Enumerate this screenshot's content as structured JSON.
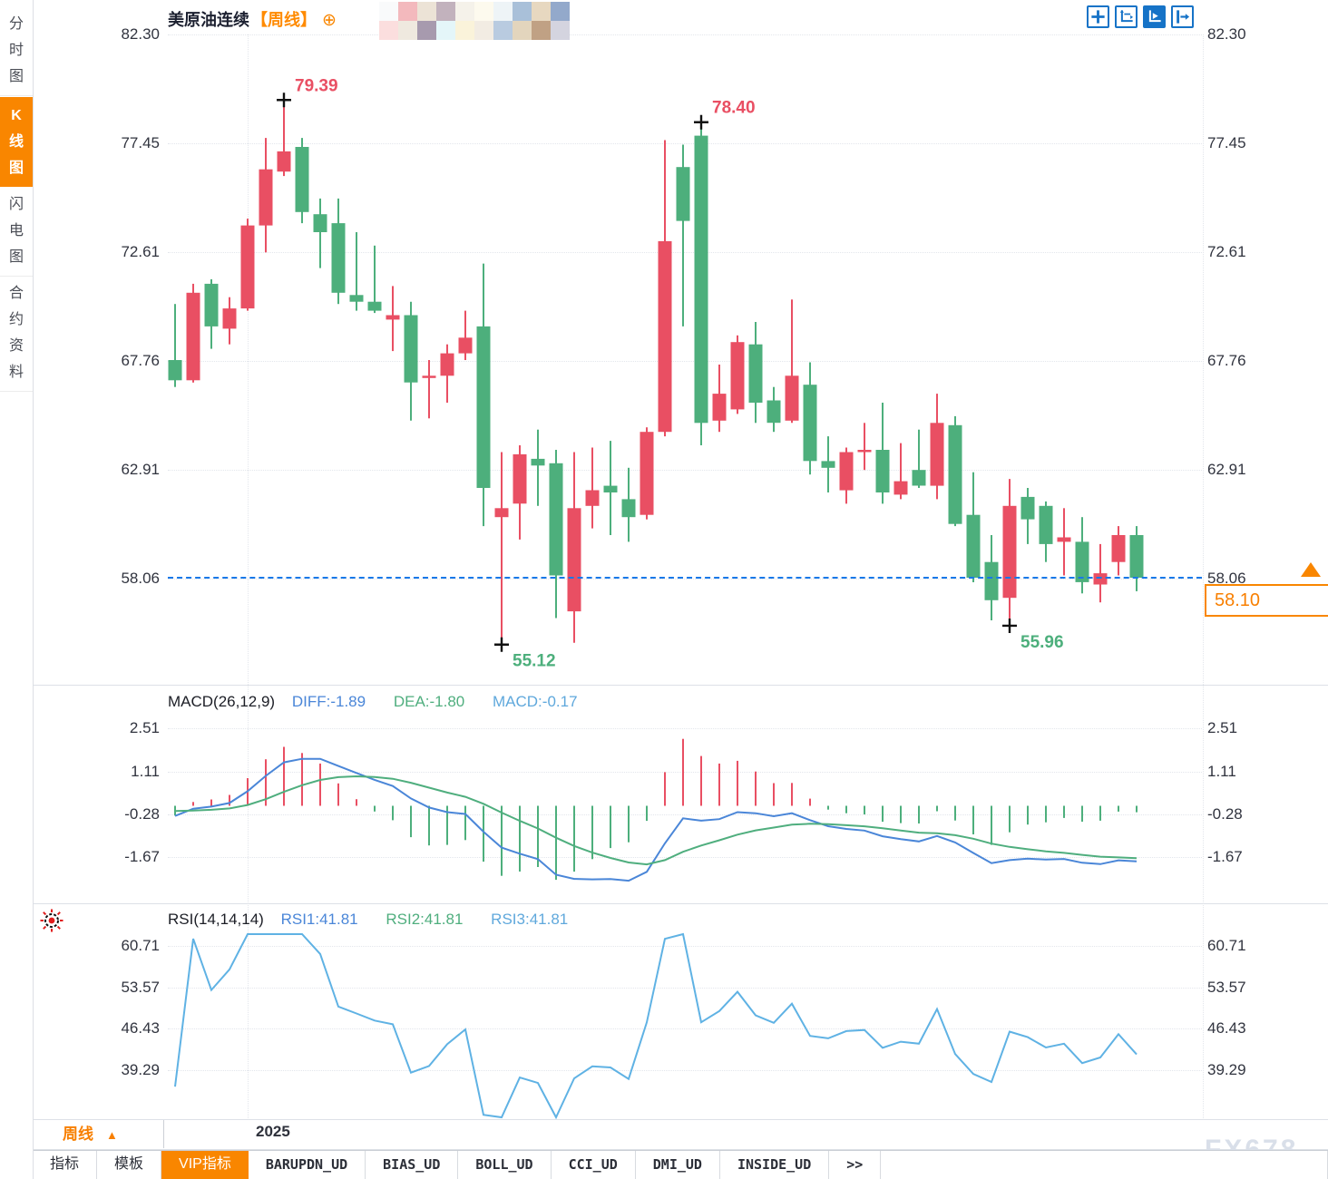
{
  "window_title": "美原油连续 周线 K线图",
  "sidebar": {
    "items": [
      {
        "label": "分时图",
        "active": false
      },
      {
        "label": "K线图",
        "active": true
      },
      {
        "label": "闪电图",
        "active": false
      },
      {
        "label": "合约资料",
        "active": false
      }
    ]
  },
  "header": {
    "title": "美原油连续",
    "timeframe_tag": "【周线】",
    "plus_icon": "⊕"
  },
  "toolbar_icons": [
    {
      "name": "crosshair-move-icon",
      "active": false
    },
    {
      "name": "axis-scale-icon",
      "active": false
    },
    {
      "name": "axis-play-icon",
      "active": true
    },
    {
      "name": "collapse-right-icon",
      "active": false
    }
  ],
  "current_price": {
    "value": "58.10",
    "line_price": 58.06
  },
  "chart_data": {
    "type": "candlestick",
    "title": "美原油连续【周线】 WTI Crude Oil Continuous, Weekly",
    "convention": "red = up candle, green = down candle (Chinese convention)",
    "price_axis_labels": [
      "82.30",
      "77.45",
      "72.61",
      "67.76",
      "62.91",
      "58.06"
    ],
    "x_year_label": "2025",
    "year_gridline_candle_index": 4,
    "candles_ohlc": [
      [
        67.8,
        70.3,
        66.6,
        66.9
      ],
      [
        66.9,
        71.2,
        66.8,
        70.8
      ],
      [
        71.2,
        71.4,
        68.3,
        69.3
      ],
      [
        69.2,
        70.6,
        68.5,
        70.1
      ],
      [
        70.1,
        74.1,
        70.0,
        73.8
      ],
      [
        73.8,
        77.7,
        72.6,
        76.3
      ],
      [
        76.2,
        79.39,
        76.0,
        77.1
      ],
      [
        77.3,
        77.7,
        73.9,
        74.4
      ],
      [
        74.3,
        75.0,
        71.9,
        73.5
      ],
      [
        73.9,
        75.0,
        70.3,
        70.8
      ],
      [
        70.7,
        73.5,
        70.0,
        70.4
      ],
      [
        70.4,
        72.9,
        69.9,
        70.0
      ],
      [
        69.6,
        71.1,
        68.2,
        69.8
      ],
      [
        69.8,
        70.4,
        65.1,
        66.8
      ],
      [
        67.0,
        67.8,
        65.2,
        67.1
      ],
      [
        67.1,
        68.5,
        65.9,
        68.1
      ],
      [
        68.1,
        70.0,
        67.8,
        68.8
      ],
      [
        69.3,
        72.1,
        60.4,
        62.1
      ],
      [
        60.8,
        63.7,
        55.12,
        61.2
      ],
      [
        61.4,
        64.0,
        59.8,
        63.6
      ],
      [
        63.4,
        64.7,
        61.3,
        63.1
      ],
      [
        63.2,
        63.8,
        56.3,
        58.2
      ],
      [
        56.6,
        63.7,
        55.2,
        61.2
      ],
      [
        61.3,
        63.9,
        60.3,
        62.0
      ],
      [
        62.2,
        64.2,
        60.0,
        61.9
      ],
      [
        61.6,
        63.0,
        59.7,
        60.8
      ],
      [
        60.9,
        64.8,
        60.7,
        64.6
      ],
      [
        64.6,
        77.6,
        64.4,
        73.1
      ],
      [
        76.4,
        77.4,
        69.3,
        74.0
      ],
      [
        77.8,
        78.4,
        64.0,
        65.0
      ],
      [
        65.1,
        67.6,
        64.6,
        66.3
      ],
      [
        65.6,
        68.9,
        65.4,
        68.6
      ],
      [
        68.5,
        69.5,
        65.0,
        65.9
      ],
      [
        66.0,
        66.6,
        64.6,
        65.0
      ],
      [
        65.1,
        70.5,
        65.0,
        67.1
      ],
      [
        66.7,
        67.7,
        62.7,
        63.3
      ],
      [
        63.3,
        64.4,
        61.9,
        63.0
      ],
      [
        62.0,
        63.9,
        61.4,
        63.7
      ],
      [
        63.7,
        65.0,
        62.9,
        63.8
      ],
      [
        63.8,
        65.9,
        61.4,
        61.9
      ],
      [
        61.8,
        64.1,
        61.6,
        62.4
      ],
      [
        62.9,
        64.7,
        62.1,
        62.2
      ],
      [
        62.2,
        66.3,
        61.6,
        65.0
      ],
      [
        64.9,
        65.3,
        60.4,
        60.5
      ],
      [
        60.9,
        62.8,
        57.9,
        58.1
      ],
      [
        58.8,
        60.0,
        56.2,
        57.1
      ],
      [
        57.2,
        62.5,
        55.96,
        61.3
      ],
      [
        61.7,
        62.1,
        59.6,
        60.7
      ],
      [
        61.3,
        61.5,
        58.8,
        59.6
      ],
      [
        59.7,
        61.2,
        58.2,
        59.9
      ],
      [
        59.7,
        60.8,
        57.4,
        57.9
      ],
      [
        57.8,
        59.6,
        57.0,
        58.3
      ],
      [
        58.8,
        60.4,
        58.2,
        60.0
      ],
      [
        60.0,
        60.4,
        57.5,
        58.1
      ]
    ],
    "annotations": [
      {
        "text": "79.39",
        "candle_index": 6,
        "price": 79.39,
        "kind": "high"
      },
      {
        "text": "78.40",
        "candle_index": 29,
        "price": 78.4,
        "kind": "high"
      },
      {
        "text": "55.12",
        "candle_index": 18,
        "price": 55.12,
        "kind": "low"
      },
      {
        "text": "55.96",
        "candle_index": 46,
        "price": 55.96,
        "kind": "low"
      }
    ],
    "last_price": 58.1,
    "dashed_line_price": 58.06,
    "macd_panel": {
      "title": "MACD(26,12,9)",
      "values": {
        "diff": "DIFF:-1.89",
        "dea": "DEA:-1.80",
        "macd": "MACD:-0.17"
      },
      "axis_labels": [
        "2.51",
        "1.11",
        "-0.28",
        "-1.67"
      ],
      "params": {
        "slow": 26,
        "fast": 12,
        "signal": 9
      }
    },
    "rsi_panel": {
      "title": "RSI(14,14,14)",
      "values": {
        "rsi1": "RSI1:41.81",
        "rsi2": "RSI2:41.81",
        "rsi3": "RSI3:41.81"
      },
      "axis_labels": [
        "60.71",
        "53.57",
        "46.43",
        "39.29"
      ],
      "period": 14
    }
  },
  "bottom": {
    "timeframe": "周线",
    "timeframe_arrow": "▲",
    "year_label": "2025"
  },
  "tabs": [
    {
      "label": "指标",
      "active": false,
      "mono": false
    },
    {
      "label": "模板",
      "active": false,
      "mono": false
    },
    {
      "label": "VIP指标",
      "active": true,
      "mono": false
    },
    {
      "label": "BARUPDN_UD",
      "active": false,
      "mono": true
    },
    {
      "label": "BIAS_UD",
      "active": false,
      "mono": true
    },
    {
      "label": "BOLL_UD",
      "active": false,
      "mono": true
    },
    {
      "label": "CCI_UD",
      "active": false,
      "mono": true
    },
    {
      "label": "DMI_UD",
      "active": false,
      "mono": true
    },
    {
      "label": "INSIDE_UD",
      "active": false,
      "mono": true
    },
    {
      "label": ">>",
      "active": false,
      "mono": true
    }
  ],
  "watermark": "FX678",
  "colors": {
    "up": "#e94f63",
    "down": "#4daf7c",
    "accent_orange": "#f98600",
    "orange_text": "#ff8a00",
    "dashed_blue": "#1778e8",
    "diff_blue": "#4a86d8",
    "dea_green": "#4fae7e",
    "macd_cyan": "#5fa8dc",
    "rsi_line": "#5fb2e4",
    "axis_text": "#31343f",
    "icon_blue": "#1673c7",
    "watermark_gray": "#d9dfe9"
  }
}
